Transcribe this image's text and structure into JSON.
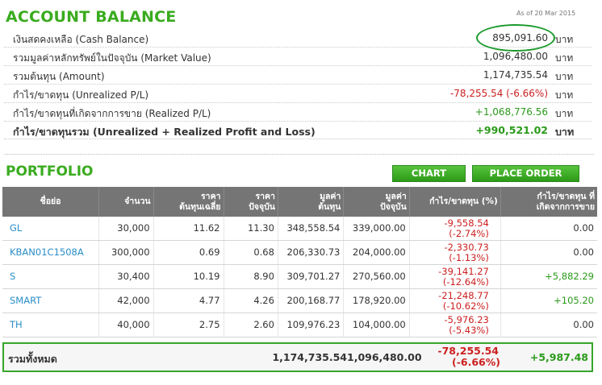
{
  "account": {
    "title": "ACCOUNT BALANCE",
    "as_of": "As of 20 Mar 2015",
    "unit": "บาท",
    "rows": [
      {
        "label": "เงินสดคงเหลือ (Cash Balance)",
        "value": "895,091.60",
        "tone": "normal"
      },
      {
        "label": "รวมมูลค่าหลักทรัพย์ในปัจจุบัน (Market Value)",
        "value": "1,096,480.00",
        "tone": "normal"
      },
      {
        "label": "รวมต้นทุน (Amount)",
        "value": "1,174,735.54",
        "tone": "normal"
      },
      {
        "label": "กำไร/ขาดทุน (Unrealized P/L)",
        "value": "-78,255.54 (-6.66%)",
        "tone": "neg"
      },
      {
        "label": "กำไร/ขาดทุนที่เกิดจากการขาย (Realized P/L)",
        "value": "+1,068,776.56",
        "tone": "pos"
      },
      {
        "label": "กำไร/ขาดทุนรวม (Unrealized + Realized Profit and Loss)",
        "value": "+990,521.02",
        "tone": "pos"
      }
    ]
  },
  "portfolio": {
    "title": "PORTFOLIO",
    "chart_label": "CHART",
    "place_order_label": "PLACE ORDER",
    "headers": {
      "symbol": "ชื่อย่อ",
      "volume": "จำนวน",
      "avg_cost_1": "ราคา",
      "avg_cost_2": "ต้นทุนเฉลี่ย",
      "price_1": "ราคา",
      "price_2": "ปัจจุบัน",
      "cost_value_1": "มูลค่า",
      "cost_value_2": "ต้นทุน",
      "market_value_1": "มูลค่า",
      "market_value_2": "ปัจจุบัน",
      "unrealized": "กำไร/ขาดทุน (%)",
      "realized_1": "กำไร/ขาดทุน ที่",
      "realized_2": "เกิดจากการขาย"
    },
    "rows": [
      {
        "symbol": "GL",
        "volume": "30,000",
        "avg_cost": "11.62",
        "price": "11.30",
        "cost_value": "348,558.54",
        "market_value": "339,000.00",
        "pl": "-9,558.54",
        "pl_pct": "(-2.74%)",
        "realized": "0.00",
        "realized_tone": "normal"
      },
      {
        "symbol": "KBAN01C1508A",
        "volume": "300,000",
        "avg_cost": "0.69",
        "price": "0.68",
        "cost_value": "206,330.73",
        "market_value": "204,000.00",
        "pl": "-2,330.73",
        "pl_pct": "(-1.13%)",
        "realized": "0.00",
        "realized_tone": "normal"
      },
      {
        "symbol": "S",
        "volume": "30,400",
        "avg_cost": "10.19",
        "price": "8.90",
        "cost_value": "309,701.27",
        "market_value": "270,560.00",
        "pl": "-39,141.27",
        "pl_pct": "(-12.64%)",
        "realized": "+5,882.29",
        "realized_tone": "pos"
      },
      {
        "symbol": "SMART",
        "volume": "42,000",
        "avg_cost": "4.77",
        "price": "4.26",
        "cost_value": "200,168.77",
        "market_value": "178,920.00",
        "pl": "-21,248.77",
        "pl_pct": "(-10.62%)",
        "realized": "+105.20",
        "realized_tone": "pos"
      },
      {
        "symbol": "TH",
        "volume": "40,000",
        "avg_cost": "2.75",
        "price": "2.60",
        "cost_value": "109,976.23",
        "market_value": "104,000.00",
        "pl": "-5,976.23",
        "pl_pct": "(-5.43%)",
        "realized": "0.00",
        "realized_tone": "normal"
      }
    ],
    "total": {
      "label": "รวมทั้งหมด",
      "cost_value": "1,174,735.54",
      "market_value": "1,096,480.00",
      "pl": "-78,255.54",
      "pl_pct": "(-6.66%)",
      "realized": "+5,987.48"
    }
  },
  "colors": {
    "accent": "#3aab1f",
    "negative": "#cc1f1f",
    "positive": "#2a9a1a",
    "header_bg": "#757575",
    "symbol": "#2a8ec8"
  }
}
